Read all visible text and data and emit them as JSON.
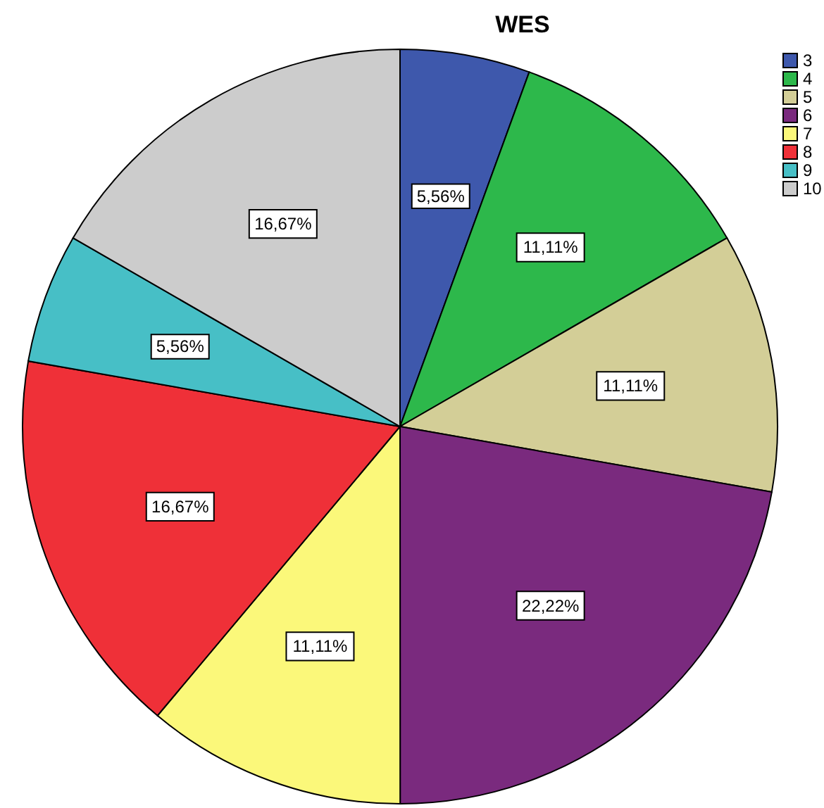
{
  "chart_data": {
    "type": "pie",
    "title": "WES",
    "categories": [
      "3",
      "4",
      "5",
      "6",
      "7",
      "8",
      "9",
      "10"
    ],
    "values": [
      5.56,
      11.11,
      11.11,
      22.22,
      11.11,
      16.67,
      5.56,
      16.67
    ],
    "colors": [
      "#3e58ac",
      "#2db84b",
      "#d3ce97",
      "#7a2a7e",
      "#fbf87a",
      "#ef3038",
      "#47bfc6",
      "#cccccc"
    ],
    "value_labels": [
      "5,56%",
      "11,11%",
      "11,11%",
      "22,22%",
      "11,11%",
      "16,67%",
      "5,56%",
      "16,67%"
    ],
    "legend": "top right"
  }
}
